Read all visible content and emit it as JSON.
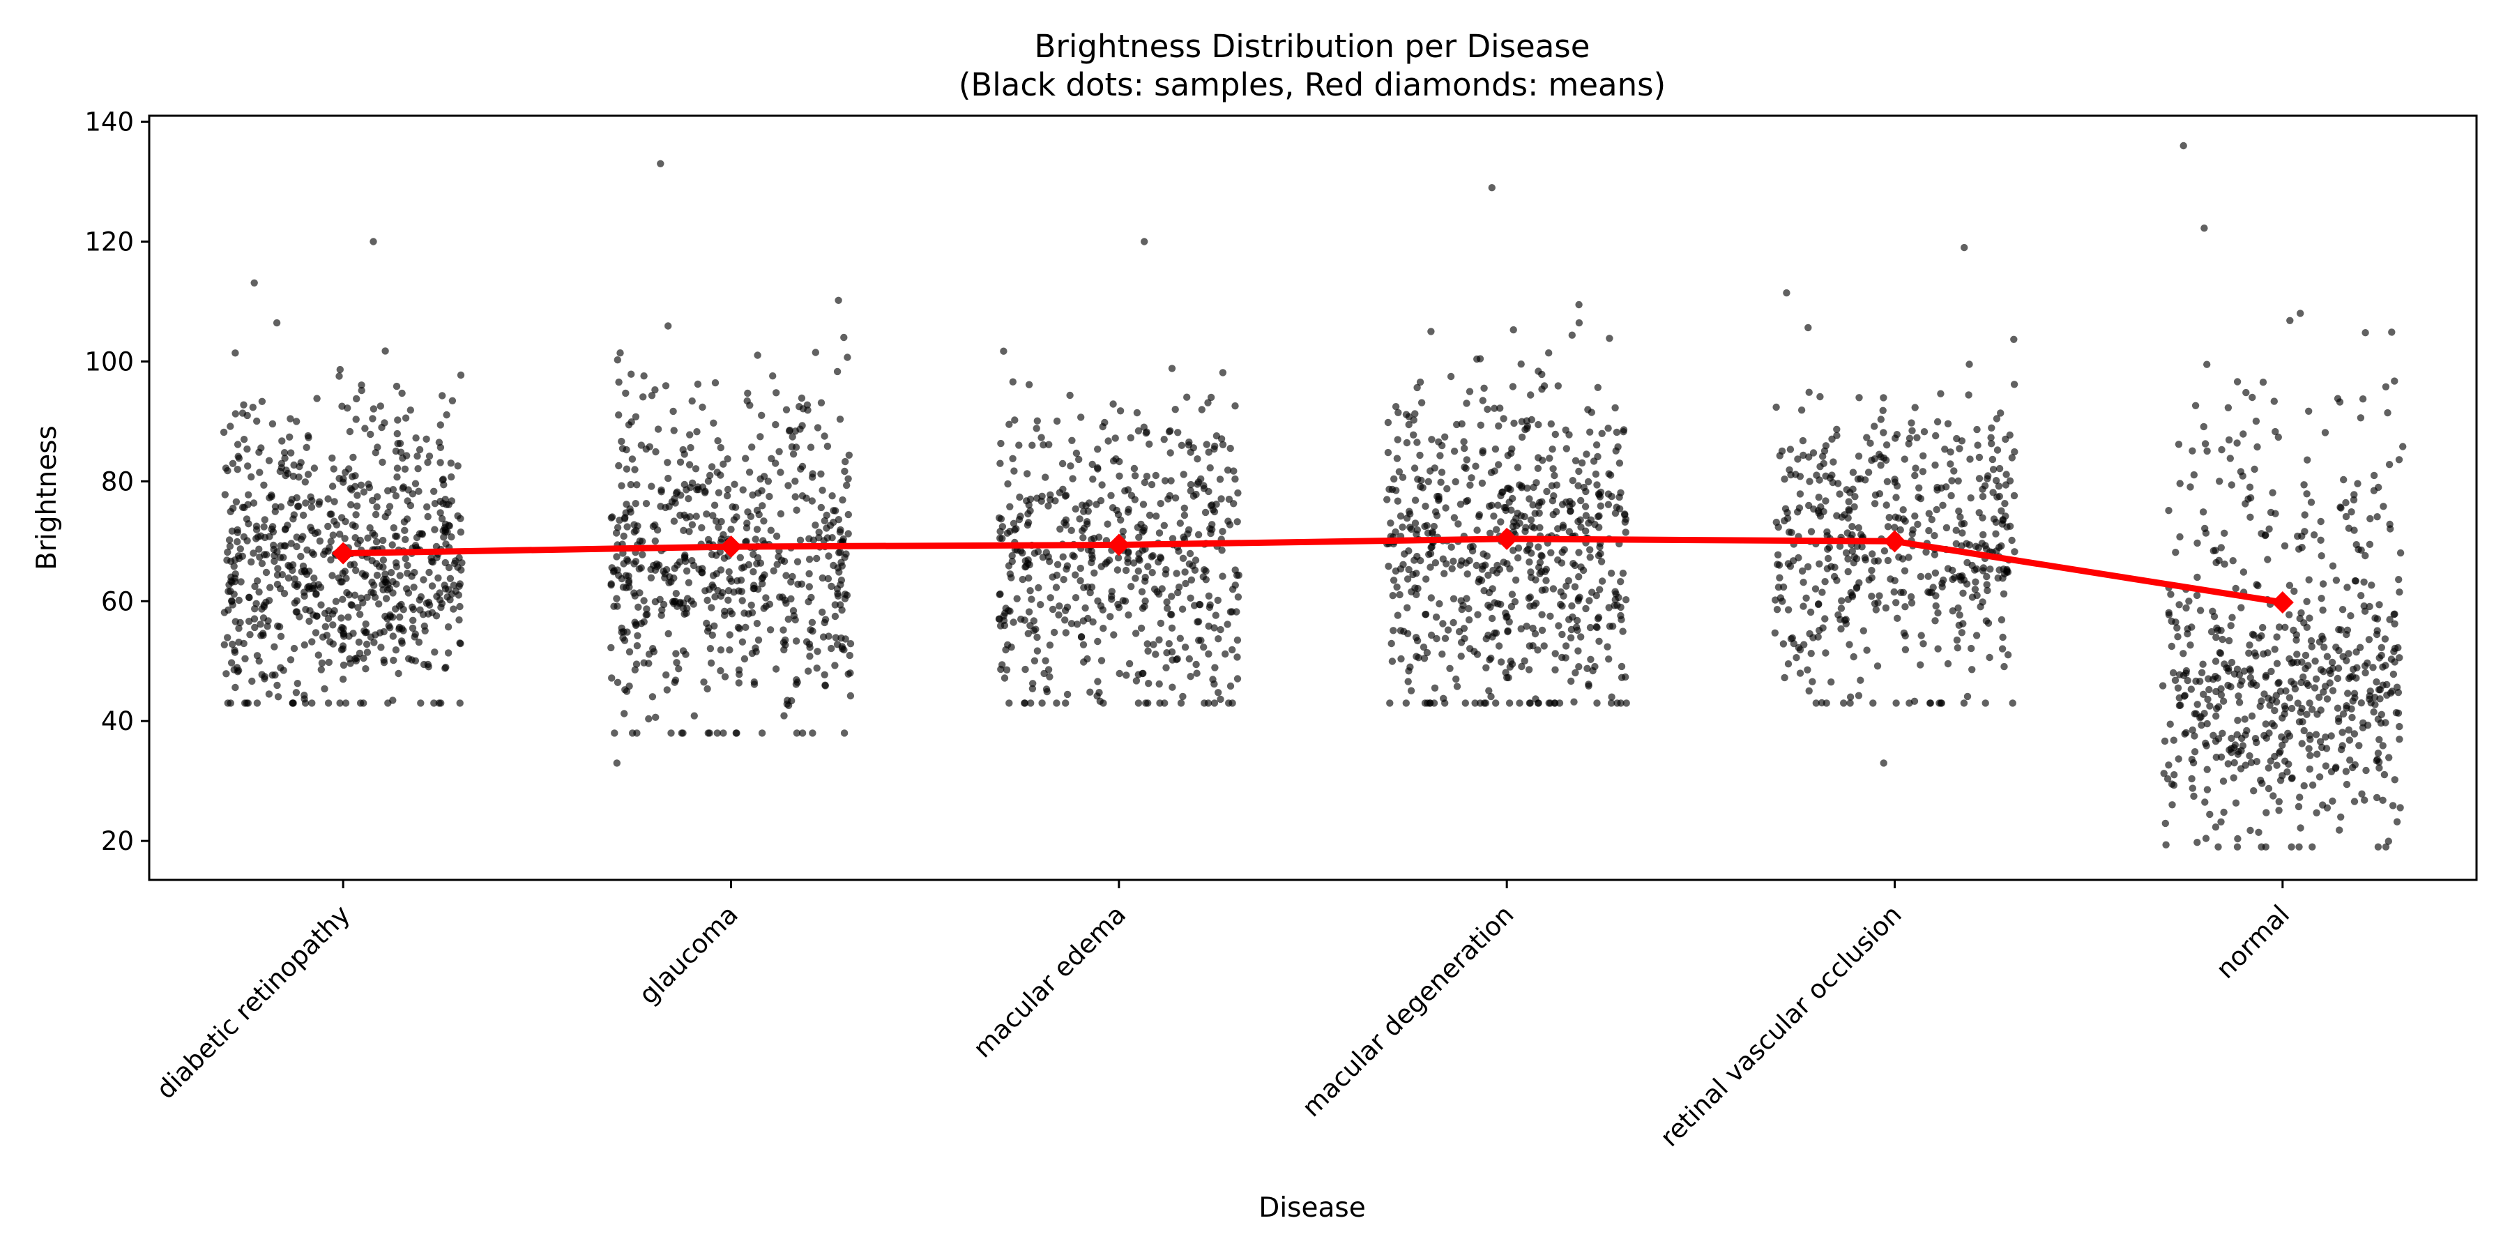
{
  "chart_data": {
    "type": "scatter",
    "title": "Brightness Distribution per Disease",
    "subtitle": "(Black dots: samples, Red diamonds: means)",
    "xlabel": "Disease",
    "ylabel": "Brightness",
    "categories": [
      "diabetic retinopathy",
      "glaucoma",
      "macular edema",
      "macular degeneration",
      "retinal vascular occlusion",
      "normal"
    ],
    "ylim": [
      13.5,
      141
    ],
    "yticks": [
      20,
      40,
      60,
      80,
      100,
      120,
      140
    ],
    "grid": false,
    "legend": "none",
    "series": [
      {
        "kind": "samples",
        "color": "#000000",
        "distribution": [
          {
            "category": "diabetic retinopathy",
            "min": 43,
            "max": 120,
            "center": 67,
            "spread": 13,
            "count": 700
          },
          {
            "category": "glaucoma",
            "min": 33,
            "max": 133,
            "center": 68,
            "spread": 15,
            "count": 600
          },
          {
            "category": "macular edema",
            "min": 43,
            "max": 120,
            "center": 68,
            "spread": 14,
            "count": 520
          },
          {
            "category": "macular degeneration",
            "min": 43,
            "max": 129,
            "center": 69,
            "spread": 15,
            "count": 620
          },
          {
            "category": "retinal vascular occlusion",
            "min": 33,
            "max": 119,
            "center": 69,
            "spread": 13,
            "count": 480
          },
          {
            "category": "normal",
            "min": 19,
            "max": 136,
            "center": 57,
            "spread": 21,
            "count": 600
          }
        ]
      },
      {
        "kind": "means",
        "color": "#ff0000",
        "values": [
          68.0,
          69.1,
          69.4,
          70.4,
          70.0,
          59.8
        ]
      }
    ]
  }
}
